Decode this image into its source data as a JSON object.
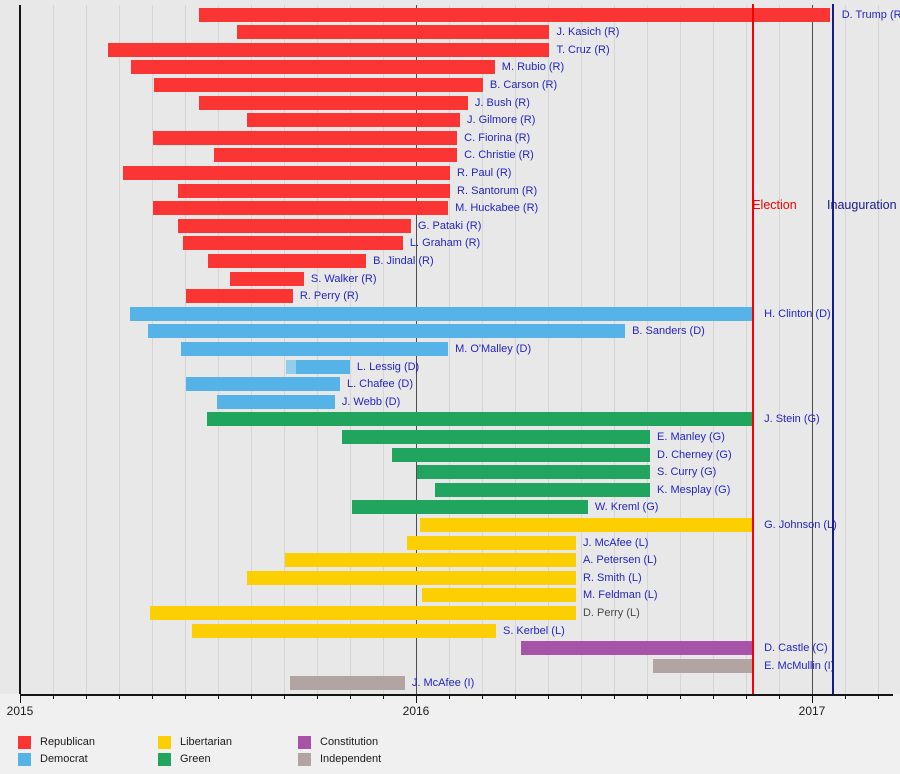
{
  "chart_data": {
    "type": "gantt",
    "x_axis": {
      "tick_labels": [
        "2015",
        "2016",
        "2017"
      ],
      "tick_years": [
        2015,
        2016,
        2017
      ],
      "range": [
        2015,
        2017.19
      ],
      "minor_tick": "monthly",
      "grid": true
    },
    "annotations": [
      {
        "id": "election",
        "label": "Election",
        "x": 2016.852,
        "color": "#f40000",
        "label_x": 2016.849,
        "label_y": 198
      },
      {
        "id": "inauguration",
        "label": "Inauguration",
        "x": 2017.052,
        "color": "#19198f",
        "label_x": 2017.038,
        "label_y": 198
      }
    ],
    "parties": {
      "R": {
        "name": "Republican",
        "color": "#fb3434"
      },
      "D": {
        "name": "Democrat",
        "color": "#55b3e8"
      },
      "L": {
        "name": "Libertarian",
        "color": "#fccf03"
      },
      "G": {
        "name": "Green",
        "color": "#21a45d"
      },
      "C": {
        "name": "Constitution",
        "color": "#a653a8"
      },
      "I": {
        "name": "Independent",
        "color": "#b3a4a4"
      }
    },
    "legend_columns": [
      [
        "R",
        "D"
      ],
      [
        "L",
        "G"
      ],
      [
        "C",
        "I"
      ]
    ],
    "candidates": [
      {
        "label": "D. Trump (R)",
        "party": "R",
        "start": 2015.452,
        "end": 2017.045,
        "label_x": 2017.075
      },
      {
        "label": "J. Kasich (R)",
        "party": "R",
        "start": 2015.548,
        "end": 2016.337
      },
      {
        "label": "T. Cruz (R)",
        "party": "R",
        "start": 2015.222,
        "end": 2016.337
      },
      {
        "label": "M. Rubio (R)",
        "party": "R",
        "start": 2015.28,
        "end": 2016.199
      },
      {
        "label": "B. Carson (R)",
        "party": "R",
        "start": 2015.338,
        "end": 2016.169
      },
      {
        "label": "J. Bush (R)",
        "party": "R",
        "start": 2015.452,
        "end": 2016.131
      },
      {
        "label": "J. Gilmore (R)",
        "party": "R",
        "start": 2015.573,
        "end": 2016.111
      },
      {
        "label": "C. Fiorina (R)",
        "party": "R",
        "start": 2015.336,
        "end": 2016.104
      },
      {
        "label": "C. Christie (R)",
        "party": "R",
        "start": 2015.49,
        "end": 2016.104
      },
      {
        "label": "R. Paul (R)",
        "party": "R",
        "start": 2015.26,
        "end": 2016.086
      },
      {
        "label": "R. Santorum (R)",
        "party": "R",
        "start": 2015.399,
        "end": 2016.086
      },
      {
        "label": "M. Huckabee (R)",
        "party": "R",
        "start": 2015.336,
        "end": 2016.081
      },
      {
        "label": "G. Pataki (R)",
        "party": "R",
        "start": 2015.399,
        "end": 2015.987
      },
      {
        "label": "L. Graham (R)",
        "party": "R",
        "start": 2015.412,
        "end": 2015.967
      },
      {
        "label": "B. Jindal (R)",
        "party": "R",
        "start": 2015.475,
        "end": 2015.874
      },
      {
        "label": "S. Walker (R)",
        "party": "R",
        "start": 2015.53,
        "end": 2015.717
      },
      {
        "label": "R. Perry (R)",
        "party": "R",
        "start": 2015.419,
        "end": 2015.689
      },
      {
        "label": "H. Clinton (D)",
        "party": "D",
        "start": 2015.278,
        "end": 2016.852,
        "label_x": 2016.879
      },
      {
        "label": "B. Sanders (D)",
        "party": "D",
        "start": 2015.323,
        "end": 2016.528
      },
      {
        "label": "M. O'Malley (D)",
        "party": "D",
        "start": 2015.407,
        "end": 2016.081
      },
      {
        "label": "L. Lessig (D)",
        "party": "D",
        "start": 2015.672,
        "end": 2015.833,
        "light_until": 2015.697,
        "light_color": "#93cdec"
      },
      {
        "label": "L. Chafee (D)",
        "party": "D",
        "start": 2015.419,
        "end": 2015.808
      },
      {
        "label": "J. Webb (D)",
        "party": "D",
        "start": 2015.497,
        "end": 2015.795
      },
      {
        "label": "J. Stein (G)",
        "party": "G",
        "start": 2015.472,
        "end": 2016.852,
        "label_x": 2016.879
      },
      {
        "label": "E. Manley (G)",
        "party": "G",
        "start": 2015.813,
        "end": 2016.591
      },
      {
        "label": "D. Cherney (G)",
        "party": "G",
        "start": 2015.939,
        "end": 2016.591
      },
      {
        "label": "S. Curry (G)",
        "party": "G",
        "start": 2016.003,
        "end": 2016.591
      },
      {
        "label": "K. Mesplay (G)",
        "party": "G",
        "start": 2016.048,
        "end": 2016.591
      },
      {
        "label": "W. Kreml (G)",
        "party": "G",
        "start": 2015.838,
        "end": 2016.434
      },
      {
        "label": "G. Johnson (L)",
        "party": "L",
        "start": 2016.01,
        "end": 2016.852,
        "label_x": 2016.879
      },
      {
        "label": "J. McAfee (L)",
        "party": "L",
        "start": 2015.977,
        "end": 2016.404
      },
      {
        "label": "A. Petersen (L)",
        "party": "L",
        "start": 2015.669,
        "end": 2016.404
      },
      {
        "label": "R. Smith (L)",
        "party": "L",
        "start": 2015.573,
        "end": 2016.404
      },
      {
        "label": "M. Feldman (L)",
        "party": "L",
        "start": 2016.015,
        "end": 2016.404
      },
      {
        "label": "D. Perry (L)",
        "party": "L",
        "start": 2015.328,
        "end": 2016.404,
        "label_color": "muted"
      },
      {
        "label": "S. Kerbel (L)",
        "party": "L",
        "start": 2015.434,
        "end": 2016.202
      },
      {
        "label": "D. Castle (C)",
        "party": "C",
        "start": 2016.265,
        "end": 2016.852,
        "label_x": 2016.879
      },
      {
        "label": "E. McMullin (I)",
        "party": "I",
        "start": 2016.598,
        "end": 2016.852,
        "label_x": 2016.879
      },
      {
        "label": "J. McAfee (I)",
        "party": "I",
        "start": 2015.682,
        "end": 2015.972
      }
    ]
  }
}
